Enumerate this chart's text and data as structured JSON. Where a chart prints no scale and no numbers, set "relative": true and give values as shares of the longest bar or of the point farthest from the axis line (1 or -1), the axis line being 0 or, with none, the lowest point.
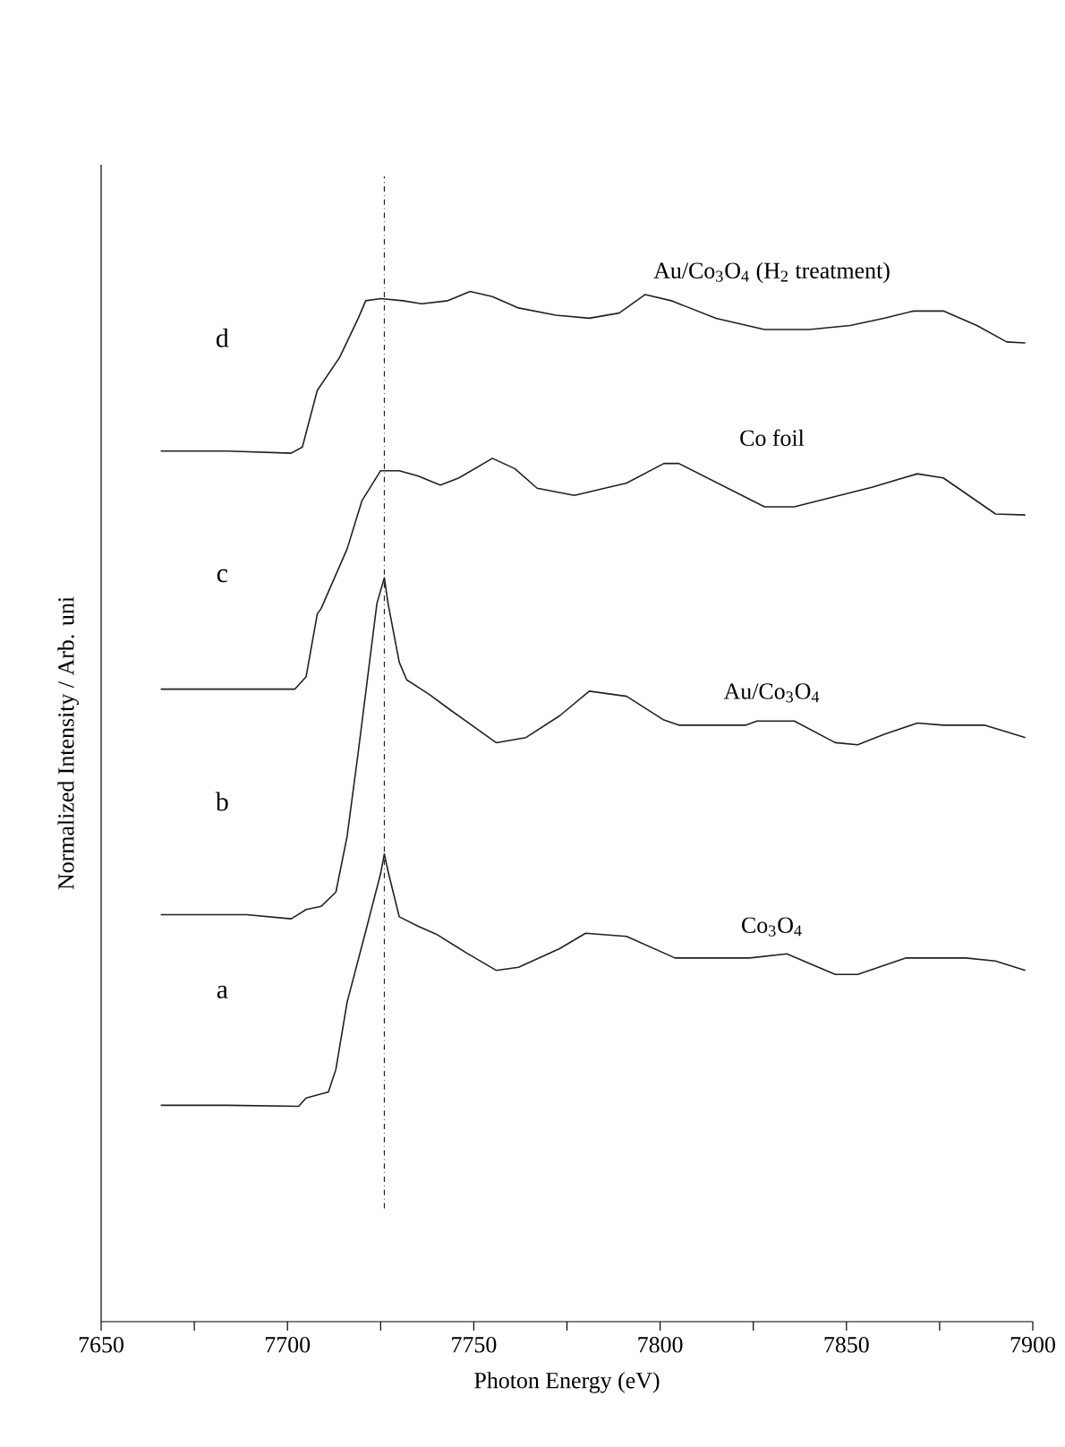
{
  "chart_data": {
    "type": "line",
    "relative": true,
    "xlabel": "Photon Energy (eV)",
    "ylabel": "Normalized Intensity / Arb. uni",
    "xlim": [
      7650,
      7900
    ],
    "xticks": [
      7650,
      7700,
      7750,
      7800,
      7850,
      7900
    ],
    "marker": "none",
    "line_style": "solid",
    "legend": false,
    "grid": false,
    "series": [
      {
        "name": "Co$_{3}$O$_{4}$",
        "color": "#231f20",
        "x": [
          7666,
          7684,
          7703,
          7705,
          7711,
          7713,
          7716,
          7721,
          7725,
          7726,
          7727,
          7730,
          7735,
          7740,
          7748,
          7756,
          7762,
          7773,
          7780,
          7791,
          7804,
          7824,
          7834,
          7847,
          7853,
          7866,
          7882,
          7890,
          7898
        ],
        "values": [
          0.21,
          0.21,
          0.209,
          0.217,
          0.223,
          0.245,
          0.31,
          0.379,
          0.435,
          0.454,
          0.437,
          0.393,
          0.384,
          0.376,
          0.358,
          0.341,
          0.344,
          0.362,
          0.377,
          0.374,
          0.353,
          0.353,
          0.357,
          0.337,
          0.337,
          0.353,
          0.353,
          0.35,
          0.341
        ]
      },
      {
        "name": "Au/Co$_{3}$O$_{4}$",
        "color": "#231f20",
        "x": [
          7666,
          7689,
          7701,
          7705,
          7709,
          7713,
          7716,
          7719,
          7724,
          7726,
          7727,
          7730,
          7732,
          7738,
          7744,
          7756,
          7764,
          7773,
          7781,
          7791,
          7801,
          7805,
          7823,
          7826,
          7836,
          7847,
          7853,
          7860,
          7869,
          7876,
          7887,
          7898
        ],
        "values": [
          0.395,
          0.395,
          0.391,
          0.4,
          0.403,
          0.417,
          0.471,
          0.553,
          0.697,
          0.722,
          0.697,
          0.64,
          0.623,
          0.609,
          0.593,
          0.562,
          0.567,
          0.588,
          0.612,
          0.607,
          0.584,
          0.579,
          0.579,
          0.583,
          0.583,
          0.562,
          0.56,
          0.57,
          0.581,
          0.579,
          0.579,
          0.567
        ]
      },
      {
        "name": "Co foil",
        "color": "#231f20",
        "x": [
          7666,
          7684,
          7702,
          7705,
          7708,
          7709,
          7716,
          7720,
          7725,
          7730,
          7735,
          7741,
          7746,
          7755,
          7761,
          7767,
          7777,
          7791,
          7801,
          7805,
          7828,
          7836,
          7857,
          7869,
          7876,
          7890,
          7898
        ],
        "values": [
          0.614,
          0.614,
          0.614,
          0.626,
          0.687,
          0.692,
          0.75,
          0.797,
          0.826,
          0.826,
          0.821,
          0.812,
          0.819,
          0.838,
          0.828,
          0.809,
          0.802,
          0.814,
          0.833,
          0.833,
          0.791,
          0.791,
          0.81,
          0.823,
          0.819,
          0.784,
          0.783
        ]
      },
      {
        "name": "Au/Co$_{3}$O$_{4}$ (H$_{2}$ treatment)",
        "color": "#231f20",
        "x": [
          7666,
          7684,
          7701,
          7704,
          7708,
          7714,
          7719,
          7721,
          7725,
          7731,
          7736,
          7743,
          7749,
          7755,
          7762,
          7772,
          7781,
          7789,
          7796,
          7803,
          7815,
          7828,
          7840,
          7851,
          7860,
          7868,
          7876,
          7885,
          7893,
          7898
        ],
        "values": [
          0.845,
          0.845,
          0.843,
          0.849,
          0.904,
          0.936,
          0.974,
          0.991,
          0.993,
          0.991,
          0.988,
          0.991,
          1.0,
          0.995,
          0.984,
          0.977,
          0.974,
          0.979,
          0.997,
          0.991,
          0.974,
          0.963,
          0.963,
          0.967,
          0.974,
          0.981,
          0.981,
          0.967,
          0.951,
          0.95
        ]
      }
    ],
    "ref_lines": [
      {
        "axis": "x",
        "value": 7726,
        "color": "#231f20",
        "line_style": "dashdot"
      }
    ],
    "annotations": [
      "a",
      "b",
      "c",
      "d"
    ]
  }
}
